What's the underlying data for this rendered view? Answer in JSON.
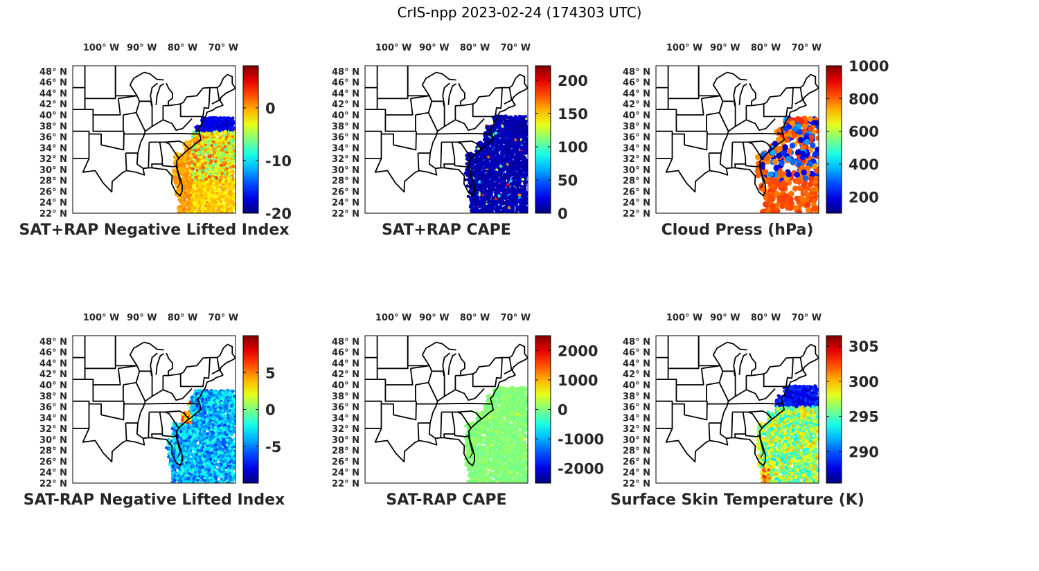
{
  "title": "CrIS-npp 2023-02-24 (174303 UTC)",
  "lon_ticks": [
    "100° W",
    "90° W",
    "80° W",
    "70° W"
  ],
  "lat_ticks": [
    "48° N",
    "46° N",
    "44° N",
    "42° N",
    "40° N",
    "38° N",
    "36° N",
    "34° N",
    "32° N",
    "30° N",
    "28° N",
    "26° N",
    "24° N",
    "22° N"
  ],
  "panels": [
    {
      "id": "sat-rap-plus-nli",
      "title": "SAT+RAP Negative Lifted Index",
      "colorbar": {
        "ticks": [
          "0",
          "-10",
          "-20"
        ],
        "values": [
          0,
          -10,
          -20
        ],
        "range": [
          -20,
          8
        ],
        "colormap": "jet"
      }
    },
    {
      "id": "sat-rap-plus-cape",
      "title": "SAT+RAP CAPE",
      "colorbar": {
        "ticks": [
          "200",
          "150",
          "100",
          "50",
          "0"
        ],
        "values": [
          200,
          150,
          100,
          50,
          0
        ],
        "range": [
          0,
          222
        ],
        "colormap": "jet"
      }
    },
    {
      "id": "cloud-press",
      "title": "Cloud Press (hPa)",
      "colorbar": {
        "ticks": [
          "1000",
          "800",
          "600",
          "400",
          "200"
        ],
        "values": [
          1000,
          800,
          600,
          400,
          200
        ],
        "range": [
          100,
          1000
        ],
        "colormap": "jet"
      }
    },
    {
      "id": "sat-rap-minus-nli",
      "title": "SAT-RAP Negative Lifted Index",
      "colorbar": {
        "ticks": [
          "5",
          "0",
          "-5"
        ],
        "values": [
          5,
          0,
          -5
        ],
        "range": [
          -10,
          10
        ],
        "colormap": "jet"
      }
    },
    {
      "id": "sat-rap-minus-cape",
      "title": "SAT-RAP CAPE",
      "colorbar": {
        "ticks": [
          "2000",
          "1000",
          "0",
          "-1000",
          "-2000"
        ],
        "values": [
          2000,
          1000,
          0,
          -1000,
          -2000
        ],
        "range": [
          -2500,
          2500
        ],
        "colormap": "jet"
      }
    },
    {
      "id": "surface-skin-temp",
      "title": "Surface Skin Temperature (K)",
      "colorbar": {
        "ticks": [
          "305",
          "300",
          "295",
          "290"
        ],
        "values": [
          305,
          300,
          295,
          290
        ],
        "range": [
          285.5,
          306.5
        ],
        "colormap": "jet"
      }
    }
  ]
}
